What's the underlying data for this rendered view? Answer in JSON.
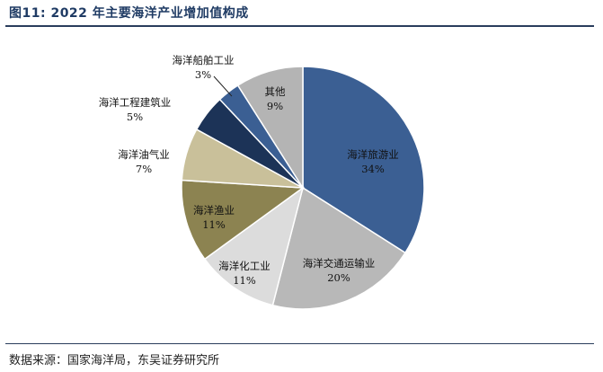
{
  "header": {
    "title": "图11:  2022 年主要海洋产业增加值构成"
  },
  "footer": {
    "source": "数据来源：国家海洋局，东吴证券研究所"
  },
  "chart_data": {
    "type": "pie",
    "title": "2022 年主要海洋产业增加值构成",
    "slices": [
      {
        "label": "海洋旅游业",
        "value": 34,
        "display": "34%",
        "color": "#3b5f93",
        "text_color": "#111111"
      },
      {
        "label": "海洋交通运输业",
        "value": 20,
        "display": "20%",
        "color": "#b8b8b8",
        "text_color": "#111111"
      },
      {
        "label": "海洋化工业",
        "value": 11,
        "display": "11%",
        "color": "#dcdcdc",
        "text_color": "#111111"
      },
      {
        "label": "海洋渔业",
        "value": 11,
        "display": "11%",
        "color": "#8c8351",
        "text_color": "#111111"
      },
      {
        "label": "海洋油气业",
        "value": 7,
        "display": "7%",
        "color": "#c9c09a",
        "text_color": "#111111"
      },
      {
        "label": "海洋工程建筑业",
        "value": 5,
        "display": "5%",
        "color": "#1c3357",
        "text_color": "#111111"
      },
      {
        "label": "海洋船舶工业",
        "value": 3,
        "display": "3%",
        "color": "#3b5f93",
        "text_color": "#111111"
      },
      {
        "label": "其他",
        "value": 9,
        "display": "9%",
        "color": "#b4b4b4",
        "text_color": "#111111"
      }
    ],
    "start": "12 o'clock",
    "direction": "clockwise",
    "legend": "none"
  }
}
